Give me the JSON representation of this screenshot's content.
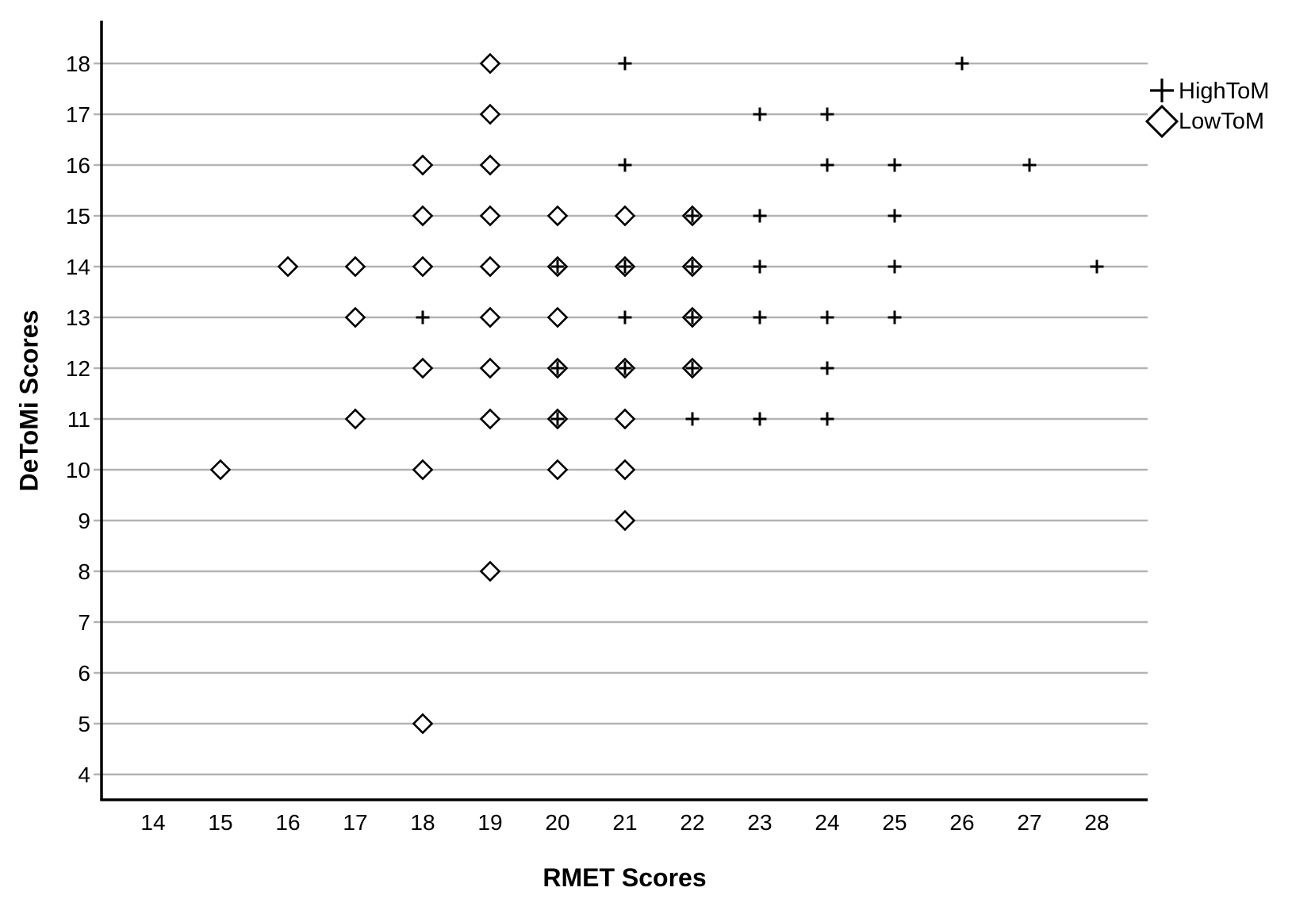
{
  "chart_data": {
    "type": "scatter",
    "title": "",
    "xlabel": "RMET Scores",
    "ylabel": "DeToMi Scores",
    "x_ticks": [
      14,
      15,
      16,
      17,
      18,
      19,
      20,
      21,
      22,
      23,
      24,
      25,
      26,
      27,
      28
    ],
    "y_ticks": [
      4,
      5,
      6,
      7,
      8,
      9,
      10,
      11,
      12,
      13,
      14,
      15,
      16,
      17,
      18
    ],
    "xlim": [
      13.2,
      28.75
    ],
    "ylim": [
      3.5,
      18.85
    ],
    "grid": "horizontal-only",
    "legend_position": "top-right",
    "colors": {
      "marker": "#000000",
      "gridline": "#b3b3b3",
      "axis": "#000000",
      "background": "#ffffff",
      "marker_fill": "#ffffff"
    },
    "series": [
      {
        "name": "LowToM",
        "marker": "diamond",
        "points": [
          [
            19,
            18
          ],
          [
            19,
            17
          ],
          [
            18,
            16
          ],
          [
            19,
            16
          ],
          [
            18,
            15
          ],
          [
            19,
            15
          ],
          [
            20,
            15
          ],
          [
            21,
            15
          ],
          [
            22,
            15
          ],
          [
            16,
            14
          ],
          [
            17,
            14
          ],
          [
            18,
            14
          ],
          [
            19,
            14
          ],
          [
            20,
            14
          ],
          [
            21,
            14
          ],
          [
            22,
            14
          ],
          [
            17,
            13
          ],
          [
            19,
            13
          ],
          [
            20,
            13
          ],
          [
            22,
            13
          ],
          [
            18,
            12
          ],
          [
            19,
            12
          ],
          [
            20,
            12
          ],
          [
            21,
            12
          ],
          [
            22,
            12
          ],
          [
            17,
            11
          ],
          [
            19,
            11
          ],
          [
            20,
            11
          ],
          [
            21,
            11
          ],
          [
            15,
            10
          ],
          [
            18,
            10
          ],
          [
            20,
            10
          ],
          [
            21,
            10
          ],
          [
            21,
            9
          ],
          [
            19,
            8
          ],
          [
            18,
            5
          ]
        ]
      },
      {
        "name": "HighToM",
        "marker": "plus",
        "points": [
          [
            21,
            18
          ],
          [
            26,
            18
          ],
          [
            23,
            17
          ],
          [
            24,
            17
          ],
          [
            21,
            16
          ],
          [
            24,
            16
          ],
          [
            25,
            16
          ],
          [
            27,
            16
          ],
          [
            22,
            15
          ],
          [
            23,
            15
          ],
          [
            25,
            15
          ],
          [
            20,
            14
          ],
          [
            21,
            14
          ],
          [
            22,
            14
          ],
          [
            23,
            14
          ],
          [
            25,
            14
          ],
          [
            28,
            14
          ],
          [
            18,
            13
          ],
          [
            21,
            13
          ],
          [
            22,
            13
          ],
          [
            23,
            13
          ],
          [
            24,
            13
          ],
          [
            25,
            13
          ],
          [
            20,
            12
          ],
          [
            21,
            12
          ],
          [
            22,
            12
          ],
          [
            24,
            12
          ],
          [
            20,
            11
          ],
          [
            22,
            11
          ],
          [
            23,
            11
          ],
          [
            24,
            11
          ]
        ]
      }
    ]
  },
  "axes": {
    "x_title": "RMET Scores",
    "y_title": "DeToMi Scores"
  },
  "legend": {
    "items": [
      {
        "label": "HighToM",
        "marker": "plus"
      },
      {
        "label": "LowToM",
        "marker": "diamond"
      }
    ]
  }
}
